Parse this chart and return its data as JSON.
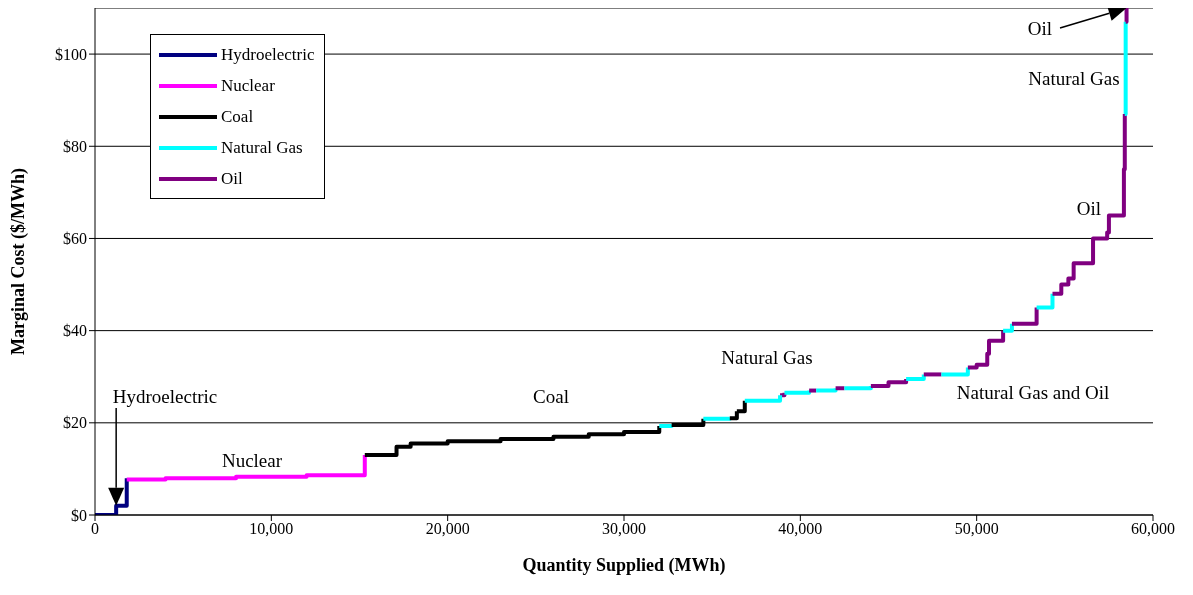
{
  "chart_data": {
    "type": "step",
    "xlabel": "Quantity Supplied (MWh)",
    "ylabel": "Marginal Cost ($/MWh)",
    "xlim": [
      0,
      60000
    ],
    "xticks": [
      0,
      {
        "value": 10000,
        "label": "10,000"
      },
      {
        "value": 20000,
        "label": "20,000"
      },
      {
        "value": 30000,
        "label": "30,000"
      },
      {
        "value": 40000,
        "label": "40,000"
      },
      {
        "value": 50000,
        "label": "50,000"
      },
      {
        "value": 60000,
        "label": "60,000"
      }
    ],
    "ylim": [
      0,
      110
    ],
    "yticks": [
      {
        "value": 0,
        "label": "$0"
      },
      {
        "value": 20,
        "label": "$20"
      },
      {
        "value": 40,
        "label": "$40"
      },
      {
        "value": 60,
        "label": "$60"
      },
      {
        "value": 80,
        "label": "$80"
      },
      {
        "value": 100,
        "label": "$100"
      }
    ],
    "grid": "y",
    "legend": "top left",
    "series": [
      {
        "name": "Hydroelectric",
        "color": "#000080",
        "x": [
          0,
          1200,
          1800
        ],
        "values": [
          0,
          2,
          8
        ]
      },
      {
        "name": "Nuclear",
        "color": "#ff00ff",
        "x": [
          1800,
          4000,
          8000,
          12000,
          15300
        ],
        "values": [
          7.7,
          8,
          8.3,
          8.6,
          13
        ]
      },
      {
        "name": "Coal",
        "color": "#000000",
        "x": [
          15300,
          17100,
          17900,
          20000,
          23000,
          26000,
          28000,
          30000,
          32000
        ],
        "values": [
          13,
          14.8,
          15.5,
          16,
          16.5,
          17,
          17.5,
          18,
          19.3
        ]
      },
      {
        "name": "Natural Gas",
        "color": "#00ffff",
        "x": [
          32000,
          32700
        ],
        "values": [
          19.3,
          19.5
        ]
      },
      {
        "name": "Oil",
        "color": "#800080",
        "x": [
          38850,
          39100
        ],
        "values": [
          26,
          26.5
        ]
      },
      {
        "color": "#000000",
        "x": [
          32700,
          34500
        ],
        "values": [
          19.5,
          20.9
        ]
      },
      {
        "color": "#00ffff",
        "x": [
          34500,
          36000
        ],
        "values": [
          20.9,
          21
        ]
      },
      {
        "color": "#000000",
        "x": [
          36000,
          36400
        ],
        "values": [
          21,
          22.5
        ]
      },
      {
        "color": "#000000",
        "x": [
          36400,
          36850
        ],
        "values": [
          22.5,
          24.8
        ]
      },
      {
        "color": "#00ffff",
        "x": [
          36850,
          38850
        ],
        "values": [
          24.8,
          26
        ]
      },
      {
        "color": "#00ffff",
        "x": [
          39100,
          40500
        ],
        "values": [
          26.5,
          27
        ]
      },
      {
        "color": "#800080",
        "x": [
          40500,
          40900
        ],
        "values": [
          27,
          27
        ]
      },
      {
        "color": "#00ffff",
        "x": [
          40900,
          42000
        ],
        "values": [
          27,
          27.5
        ]
      },
      {
        "color": "#800080",
        "x": [
          42000,
          42500
        ],
        "values": [
          27.5,
          27.5
        ]
      },
      {
        "color": "#00ffff",
        "x": [
          42500,
          44000
        ],
        "values": [
          27.5,
          28
        ]
      },
      {
        "color": "#800080",
        "x": [
          44000,
          45000,
          46000
        ],
        "values": [
          28,
          28.8,
          29.5
        ]
      },
      {
        "color": "#00ffff",
        "x": [
          46000,
          47000
        ],
        "values": [
          29.5,
          30.5
        ]
      },
      {
        "color": "#800080",
        "x": [
          47000,
          48000
        ],
        "values": [
          30.5,
          30.5
        ]
      },
      {
        "color": "#00ffff",
        "x": [
          48000,
          49500
        ],
        "values": [
          30.5,
          32
        ]
      },
      {
        "color": "#800080",
        "x": [
          49500,
          50000,
          50600,
          50700,
          51500
        ],
        "values": [
          32,
          32.6,
          35,
          37.8,
          40
        ]
      },
      {
        "color": "#00ffff",
        "x": [
          51500,
          52000
        ],
        "values": [
          40,
          41.5
        ]
      },
      {
        "color": "#800080",
        "x": [
          52000,
          53400
        ],
        "values": [
          41.5,
          45
        ]
      },
      {
        "color": "#00ffff",
        "x": [
          53400,
          54300
        ],
        "values": [
          45,
          48
        ]
      },
      {
        "color": "#800080",
        "x": [
          54300,
          54800,
          55200,
          55500,
          56600,
          57400,
          57500,
          58300,
          58350,
          58400
        ],
        "values": [
          48,
          50,
          51.3,
          54.6,
          60,
          61.3,
          65,
          65,
          75,
          87
        ]
      },
      {
        "color": "#00ffff",
        "x": [
          58400,
          58450
        ],
        "values": [
          87,
          107
        ]
      },
      {
        "color": "#800080",
        "x": [
          58450,
          58500
        ],
        "values": [
          107,
          110
        ]
      }
    ],
    "annotations": [
      "Hydroelectric",
      "Nuclear",
      "Coal",
      "Natural Gas",
      "Natural Gas and Oil",
      "Oil",
      "Natural Gas",
      "Oil"
    ]
  }
}
